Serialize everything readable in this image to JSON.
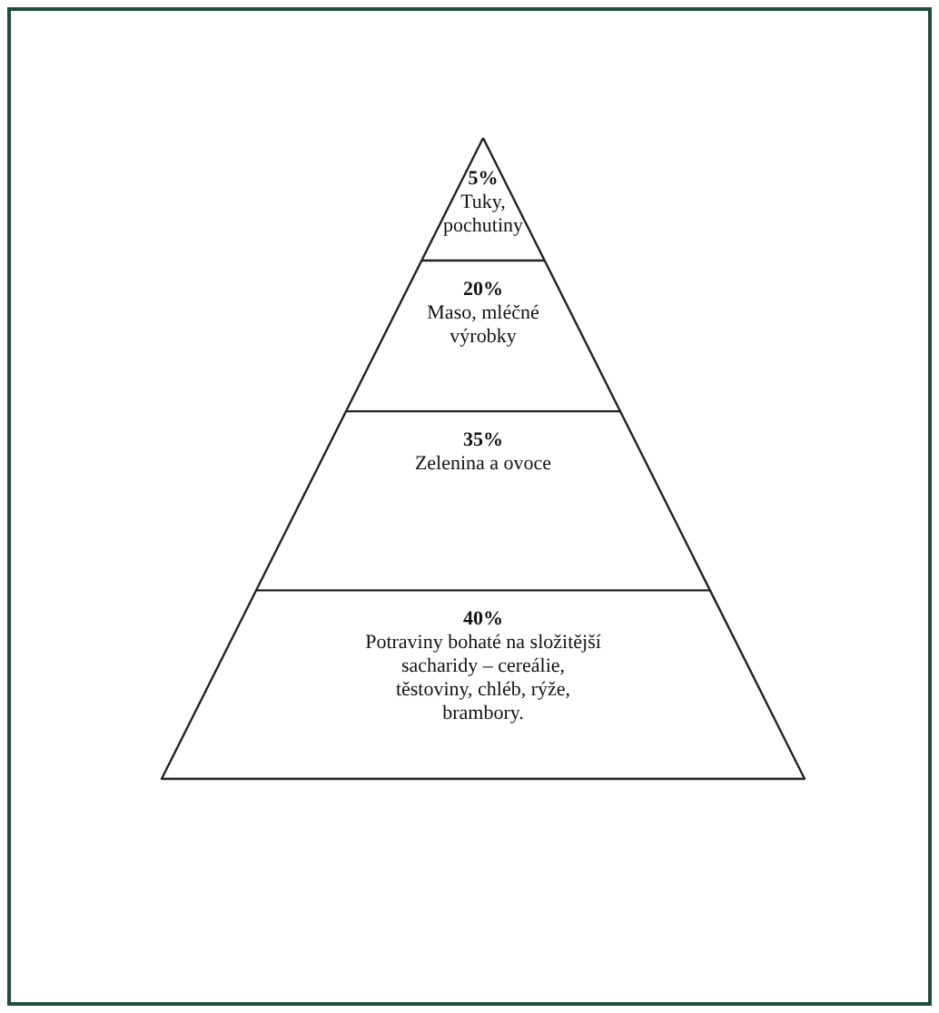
{
  "chart_data": {
    "type": "other",
    "categories": [
      "Tuky, pochutiny",
      "Maso, mléčné výrobky",
      "Zelenina a ovoce",
      "Potraviny bohaté na složitější sacharidy – cereálie, těstoviny, chléb, rýže, brambory."
    ],
    "values": [
      5,
      20,
      35,
      40
    ],
    "value_labels": [
      "5%",
      "20%",
      "35%",
      "40%"
    ]
  }
}
